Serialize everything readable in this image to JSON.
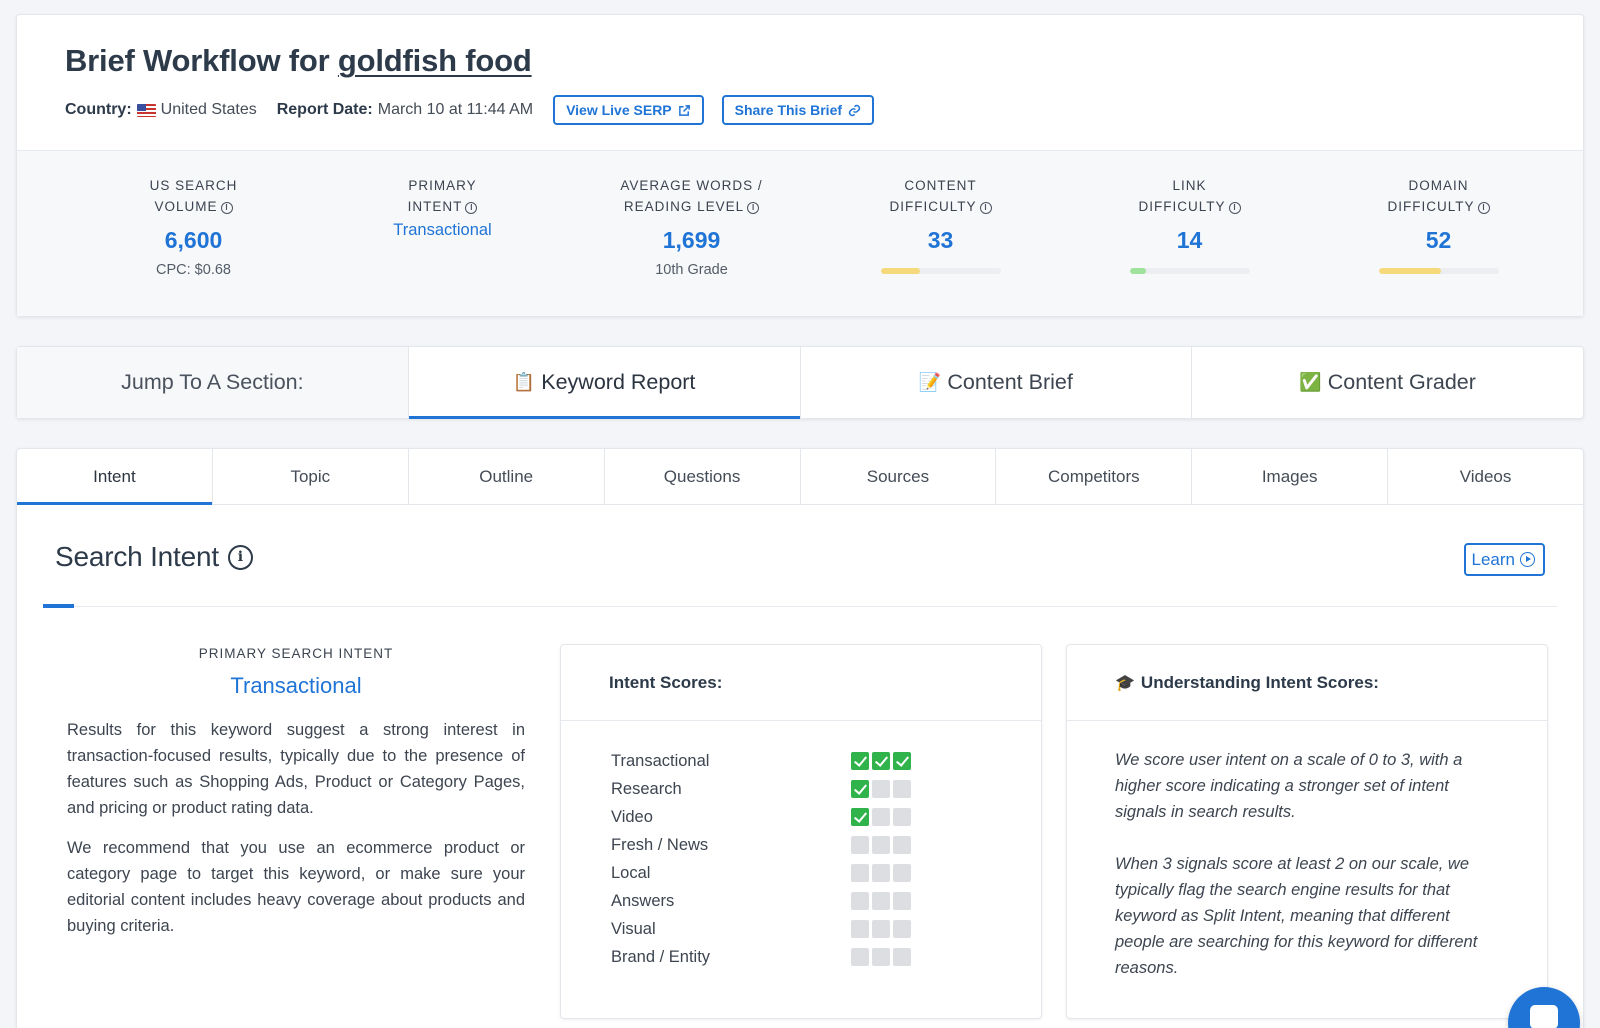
{
  "header": {
    "title_prefix": "Brief Workflow for ",
    "keyword": "goldfish food",
    "country_label": "Country:",
    "country_value": "United States",
    "report_date_label": "Report Date:",
    "report_date_value": "March 10 at 11:44 AM",
    "view_serp_label": "View Live SERP",
    "share_label": "Share This Brief"
  },
  "stats": {
    "search_volume": {
      "label_1": "US SEARCH",
      "label_2": "VOLUME",
      "value": "6,600",
      "sub": "CPC: $0.68"
    },
    "primary_intent": {
      "label_1": "PRIMARY",
      "label_2": "INTENT",
      "value": "Transactional"
    },
    "avg_words": {
      "label_1": "AVERAGE WORDS /",
      "label_2": "READING LEVEL",
      "value": "1,699",
      "sub": "10th Grade"
    },
    "content_difficulty": {
      "label_1": "CONTENT",
      "label_2": "DIFFICULTY",
      "value": "33",
      "level": 0.33,
      "color": "#f5d97a"
    },
    "link_difficulty": {
      "label_1": "LINK",
      "label_2": "DIFFICULTY",
      "value": "14",
      "level": 0.14,
      "color": "#9fe29c"
    },
    "domain_difficulty": {
      "label_1": "DOMAIN",
      "label_2": "DIFFICULTY",
      "value": "52",
      "level": 0.52,
      "color": "#f5d97a"
    }
  },
  "jump": {
    "label": "Jump To A Section:",
    "items": [
      {
        "emoji": "📋",
        "label": "Keyword Report"
      },
      {
        "emoji": "📝",
        "label": "Content Brief"
      },
      {
        "emoji": "✅",
        "label": "Content Grader"
      }
    ]
  },
  "tabs": [
    "Intent",
    "Topic",
    "Outline",
    "Questions",
    "Sources",
    "Competitors",
    "Images",
    "Videos"
  ],
  "intent_section": {
    "title": "Search Intent",
    "learn_label": "Learn",
    "primary_label": "PRIMARY SEARCH INTENT",
    "primary_value": "Transactional",
    "para_1": "Results for this keyword suggest a strong interest in transaction-focused results, typically due to the presence of features such as Shopping Ads, Product or Category Pages, and pricing or product rating data.",
    "para_2": "We recommend that you use an ecommerce product or category page to target this keyword, or make sure your editorial content includes heavy coverage about products and buying criteria."
  },
  "scores_panel": {
    "title": "Intent Scores:",
    "rows": [
      {
        "name": "Transactional",
        "score": 3
      },
      {
        "name": "Research",
        "score": 1
      },
      {
        "name": "Video",
        "score": 1
      },
      {
        "name": "Fresh / News",
        "score": 0
      },
      {
        "name": "Local",
        "score": 0
      },
      {
        "name": "Answers",
        "score": 0
      },
      {
        "name": "Visual",
        "score": 0
      },
      {
        "name": "Brand / Entity",
        "score": 0
      }
    ]
  },
  "understand_panel": {
    "emoji": "🎓",
    "title": "Understanding Intent Scores:",
    "para_1": "We score user intent on a scale of 0 to 3, with a higher score indicating a stronger set of intent signals in search results.",
    "para_2": "When 3 signals score at least 2 on our scale, we typically flag the search engine results for that keyword as Split Intent, meaning that different people are searching for this keyword for different reasons."
  },
  "accent_color": "#1f74d6"
}
